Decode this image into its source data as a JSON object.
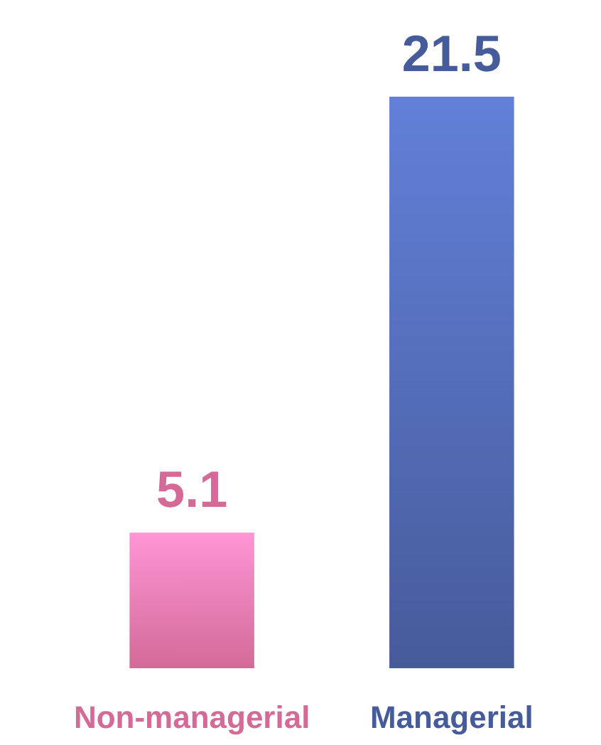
{
  "chart_data": {
    "type": "bar",
    "categories": [
      "Non-managerial",
      "Managerial"
    ],
    "values": [
      5.1,
      21.5
    ],
    "colors": [
      "#ef78ac",
      "#4f67ae"
    ],
    "data_labels": true
  }
}
